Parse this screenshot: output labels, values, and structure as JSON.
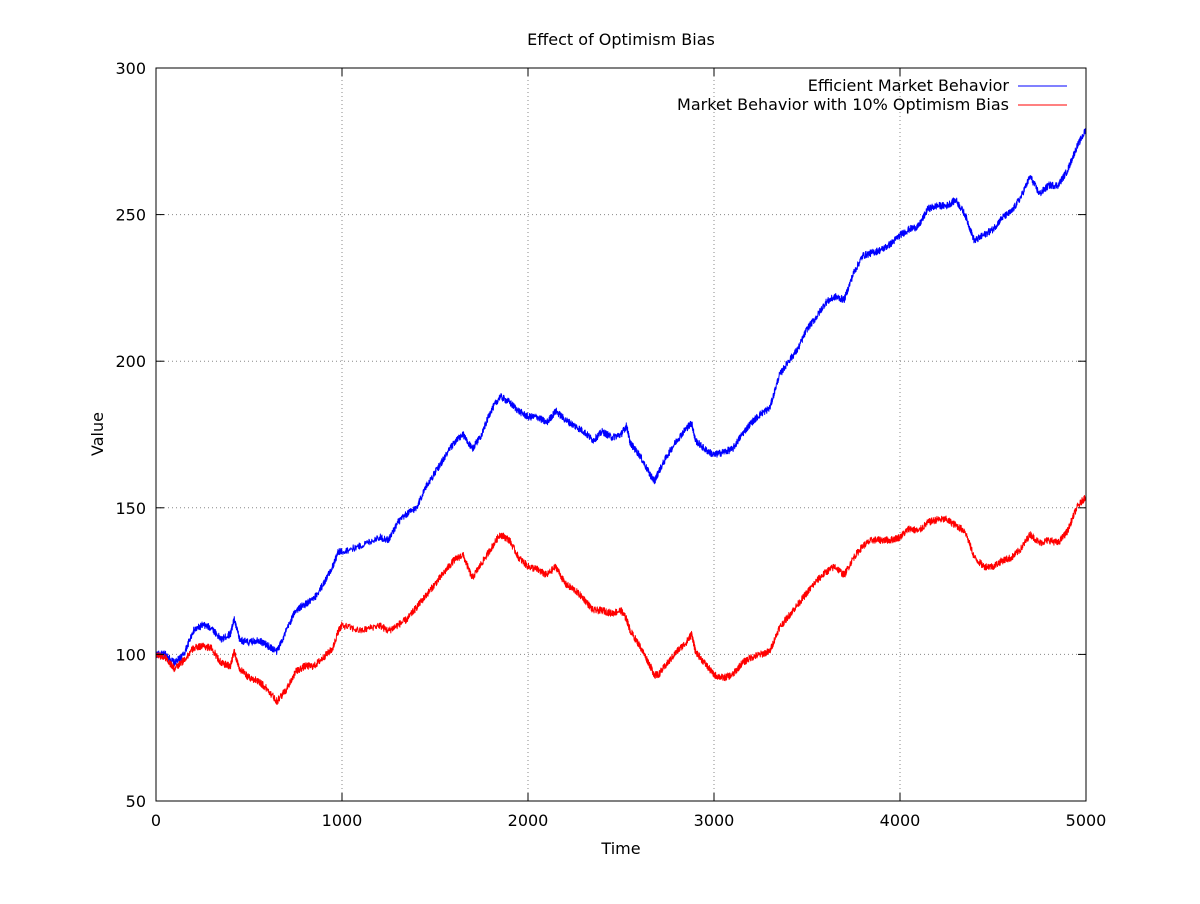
{
  "chart_data": {
    "type": "line",
    "title": "Effect of Optimism Bias",
    "xlabel": "Time",
    "ylabel": "Value",
    "xlim": [
      0,
      5000
    ],
    "ylim": [
      50,
      300
    ],
    "xticks": [
      0,
      1000,
      2000,
      3000,
      4000,
      5000
    ],
    "yticks": [
      50,
      100,
      150,
      200,
      250,
      300
    ],
    "grid": true,
    "legend_position": "top-right",
    "series": [
      {
        "name": "Efficient Market Behavior",
        "color": "#0000ff",
        "x": [
          0,
          50,
          100,
          150,
          200,
          250,
          300,
          350,
          400,
          420,
          450,
          500,
          550,
          600,
          650,
          700,
          750,
          800,
          850,
          900,
          950,
          980,
          1000,
          1100,
          1200,
          1250,
          1300,
          1350,
          1400,
          1450,
          1500,
          1550,
          1600,
          1650,
          1700,
          1750,
          1800,
          1850,
          1900,
          1950,
          2000,
          2050,
          2100,
          2150,
          2200,
          2250,
          2300,
          2350,
          2400,
          2450,
          2500,
          2530,
          2550,
          2600,
          2650,
          2680,
          2700,
          2750,
          2800,
          2850,
          2880,
          2900,
          2950,
          3000,
          3050,
          3100,
          3150,
          3200,
          3250,
          3300,
          3350,
          3400,
          3450,
          3500,
          3550,
          3600,
          3650,
          3700,
          3750,
          3800,
          3850,
          3900,
          3950,
          4000,
          4050,
          4100,
          4150,
          4200,
          4250,
          4300,
          4350,
          4400,
          4450,
          4500,
          4550,
          4600,
          4650,
          4700,
          4750,
          4800,
          4850,
          4900,
          4950,
          5000
        ],
        "y": [
          100,
          100,
          97,
          100,
          108,
          110,
          109,
          105,
          107,
          112,
          105,
          104,
          105,
          103,
          101,
          108,
          115,
          117,
          119,
          124,
          130,
          135,
          135,
          137,
          140,
          139,
          145,
          148,
          150,
          157,
          162,
          167,
          172,
          175,
          170,
          175,
          183,
          188,
          186,
          183,
          181,
          181,
          179,
          183,
          180,
          178,
          176,
          173,
          176,
          174,
          175,
          178,
          172,
          168,
          162,
          159,
          162,
          168,
          173,
          177,
          179,
          173,
          170,
          168,
          169,
          170,
          175,
          179,
          182,
          184,
          195,
          200,
          204,
          211,
          215,
          220,
          222,
          221,
          230,
          236,
          237,
          238,
          240,
          243,
          245,
          246,
          252,
          253,
          253,
          255,
          250,
          241,
          243,
          245,
          249,
          251,
          256,
          263,
          257,
          260,
          260,
          265,
          273,
          279
        ]
      },
      {
        "name": "Market Behavior with 10% Optimism Bias",
        "color": "#ff0000",
        "x": [
          0,
          50,
          100,
          150,
          200,
          250,
          300,
          350,
          400,
          420,
          450,
          500,
          550,
          600,
          650,
          700,
          750,
          800,
          850,
          900,
          950,
          980,
          1000,
          1100,
          1200,
          1250,
          1300,
          1350,
          1400,
          1450,
          1500,
          1550,
          1600,
          1650,
          1700,
          1750,
          1800,
          1850,
          1900,
          1950,
          2000,
          2050,
          2100,
          2150,
          2200,
          2250,
          2300,
          2350,
          2400,
          2450,
          2500,
          2530,
          2550,
          2600,
          2650,
          2680,
          2700,
          2750,
          2800,
          2850,
          2880,
          2900,
          2950,
          3000,
          3050,
          3100,
          3150,
          3200,
          3250,
          3300,
          3350,
          3400,
          3450,
          3500,
          3550,
          3600,
          3650,
          3700,
          3750,
          3800,
          3850,
          3900,
          3950,
          4000,
          4050,
          4100,
          4150,
          4200,
          4250,
          4300,
          4350,
          4400,
          4450,
          4500,
          4550,
          4600,
          4650,
          4700,
          4750,
          4800,
          4850,
          4900,
          4950,
          5000
        ],
        "y": [
          100,
          99,
          95,
          98,
          102,
          103,
          102,
          97,
          96,
          101,
          95,
          92,
          91,
          88,
          84,
          88,
          94,
          96,
          96,
          99,
          102,
          108,
          110,
          108,
          110,
          108,
          110,
          112,
          116,
          120,
          124,
          128,
          132,
          134,
          126,
          131,
          136,
          141,
          139,
          133,
          130,
          129,
          127,
          130,
          124,
          122,
          119,
          115,
          115,
          114,
          115,
          112,
          108,
          103,
          97,
          93,
          93,
          97,
          101,
          104,
          107,
          101,
          97,
          93,
          92,
          93,
          97,
          99,
          100,
          101,
          109,
          113,
          117,
          121,
          125,
          128,
          130,
          127,
          133,
          137,
          139,
          139,
          139,
          140,
          143,
          142,
          145,
          146,
          146,
          144,
          142,
          133,
          130,
          130,
          132,
          133,
          136,
          141,
          138,
          139,
          138,
          142,
          150,
          154
        ]
      }
    ]
  }
}
